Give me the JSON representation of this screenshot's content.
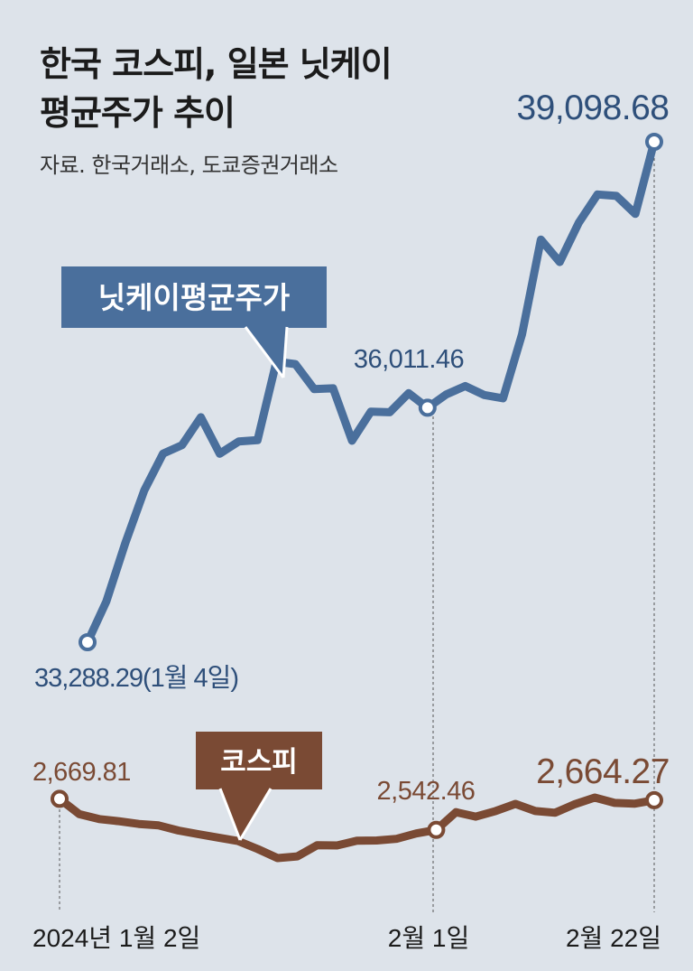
{
  "header": {
    "title_line1": "한국 코스피, 일본 닛케이",
    "title_line2": "평균주가 추이",
    "source": "자료. 한국거래소, 도쿄증권거래소"
  },
  "colors": {
    "nikkei": "#4a6f9c",
    "kospi": "#7a4a34",
    "background": "#dde3ea"
  },
  "chart_data": [
    {
      "type": "line",
      "series": [
        {
          "name": "닛케이평균주가",
          "values": [
            33288.29,
            33763,
            34441,
            35049,
            35478,
            35577,
            35901,
            35477,
            35619,
            35634,
            36546,
            36518,
            36227,
            36236,
            35628,
            35966,
            35959,
            36180,
            36011.46,
            36166,
            36263,
            36159,
            36120,
            36863,
            37963,
            37703,
            38157,
            38487,
            38470,
            38262,
            39098.68
          ]
        }
      ],
      "labels": {
        "legend": "닛케이평균주가",
        "start": "33,288.29(1월 4일)",
        "mid": "36,011.46",
        "end": "39,098.68"
      }
    },
    {
      "type": "line",
      "series": [
        {
          "name": "코스피",
          "values": [
            2669.81,
            2607,
            2587,
            2578,
            2567,
            2561,
            2540,
            2525,
            2511,
            2497,
            2464,
            2427,
            2434,
            2480,
            2479,
            2498,
            2499,
            2506,
            2528,
            2542.46,
            2615,
            2597,
            2620,
            2649,
            2620,
            2613,
            2648,
            2675,
            2653,
            2650,
            2664.27
          ]
        }
      ],
      "labels": {
        "legend": "코스피",
        "start": "2,669.81",
        "mid": "2,542.46",
        "end": "2,664.27"
      }
    }
  ],
  "x_axis": {
    "start": "2024년 1월 2일",
    "mid": "2월 1일",
    "end": "2월 22일"
  }
}
